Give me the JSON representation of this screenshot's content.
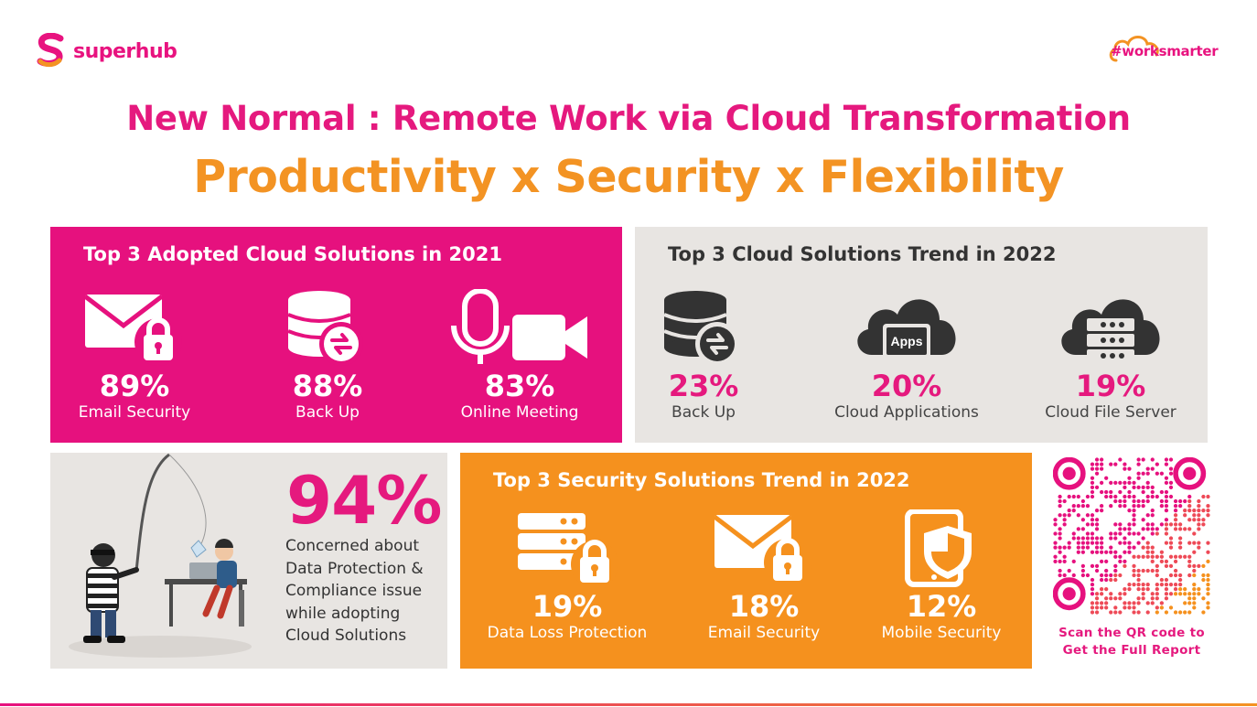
{
  "brand": {
    "name": "superhub",
    "tagline": "#worksmarter",
    "primary_color": "#e6117e",
    "accent_color": "#f5911e"
  },
  "titles": {
    "headline": "New Normal : Remote Work via Cloud Transformation",
    "subheadline": "Productivity x Security x Flexibility"
  },
  "adopted_2021": {
    "title": "Top 3 Adopted Cloud Solutions in 2021",
    "items": [
      {
        "icon": "email-lock-icon",
        "percent": "89%",
        "label": "Email Security"
      },
      {
        "icon": "database-sync-icon",
        "percent": "88%",
        "label": "Back Up"
      },
      {
        "icon": "microphone-video-icon",
        "percent": "83%",
        "label": "Online Meeting"
      }
    ]
  },
  "trend_2022": {
    "title": "Top 3 Cloud Solutions Trend in 2022",
    "items": [
      {
        "icon": "database-sync-icon",
        "percent": "23%",
        "label": "Back Up"
      },
      {
        "icon": "cloud-apps-icon",
        "icon_text": "Apps",
        "percent": "20%",
        "label": "Cloud Applications"
      },
      {
        "icon": "cloud-server-icon",
        "percent": "19%",
        "label": "Cloud File Server"
      }
    ]
  },
  "concern": {
    "percent": "94%",
    "text": "Concerned about Data Protection & Compliance issue while adopting Cloud Solutions"
  },
  "security_2022": {
    "title": "Top 3 Security Solutions Trend in 2022",
    "items": [
      {
        "icon": "server-lock-icon",
        "percent": "19%",
        "label": "Data Loss Protection"
      },
      {
        "icon": "email-lock-icon",
        "percent": "18%",
        "label": "Email Security"
      },
      {
        "icon": "mobile-shield-icon",
        "percent": "12%",
        "label": "Mobile Security"
      }
    ]
  },
  "qr": {
    "caption_line1": "Scan the QR code to",
    "caption_line2": "Get the Full Report"
  }
}
